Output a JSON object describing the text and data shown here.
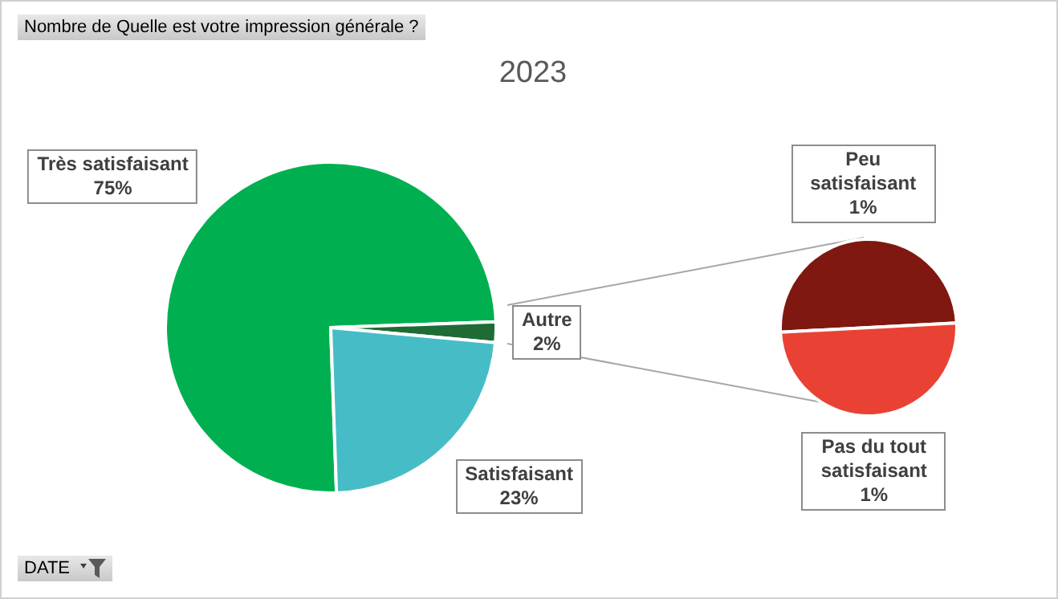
{
  "chart_data": [
    {
      "type": "pie",
      "title": "2023",
      "categories": [
        "Très satisfaisant",
        "Autre",
        "Satisfaisant"
      ],
      "values": [
        75,
        2,
        23
      ],
      "value_labels": [
        "75%",
        "2%",
        "23%"
      ],
      "colors": [
        "#00b050",
        "#1f6b36",
        "#46bdc6"
      ],
      "annotations": [
        "Nombre de Quelle est votre impression générale ?",
        "DATE"
      ]
    },
    {
      "type": "pie",
      "categories": [
        "Peu satisfaisant",
        "Pas du tout satisfaisant"
      ],
      "values": [
        1,
        1
      ],
      "value_labels": [
        "1%",
        "1%"
      ],
      "colors": [
        "#7f1810",
        "#e94235"
      ]
    }
  ]
}
